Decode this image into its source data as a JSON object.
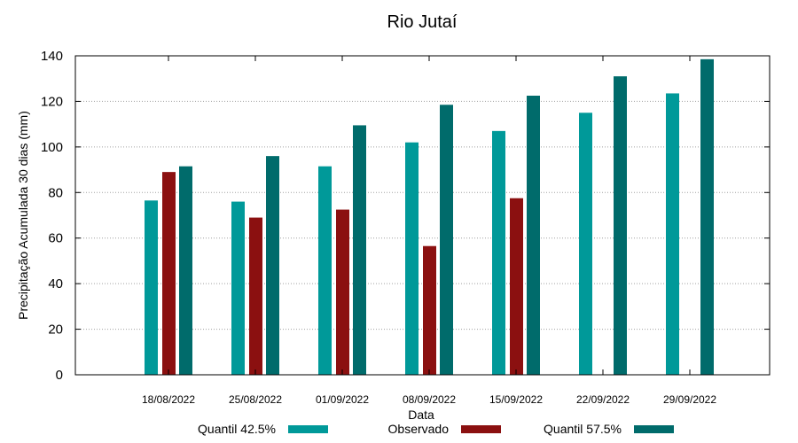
{
  "chart_data": {
    "type": "bar",
    "title": "Rio Jutaí",
    "xlabel": "Data",
    "ylabel": "Precipitação Acumulada 30 dias (mm)",
    "ylim": [
      0,
      140
    ],
    "yticks": [
      0,
      20,
      40,
      60,
      80,
      100,
      120,
      140
    ],
    "grid": true,
    "legend_position": "bottom",
    "categories": [
      "18/08/2022",
      "25/08/2022",
      "01/09/2022",
      "08/09/2022",
      "15/09/2022",
      "22/09/2022",
      "29/09/2022"
    ],
    "series": [
      {
        "name": "Quantil 42.5%",
        "color": "#009999",
        "values": [
          76.5,
          76,
          91.5,
          102,
          107,
          115,
          123.5
        ]
      },
      {
        "name": "Observado",
        "color": "#8b1010",
        "values": [
          89,
          69,
          72.5,
          56.5,
          77.5,
          null,
          null
        ]
      },
      {
        "name": "Quantil 57.5%",
        "color": "#006b6b",
        "values": [
          91.5,
          96,
          109.5,
          118.5,
          122.5,
          131,
          138.5
        ]
      }
    ]
  }
}
